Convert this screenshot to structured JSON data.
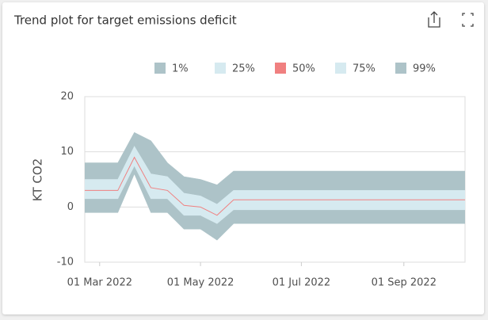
{
  "chart_data": {
    "type": "fan",
    "title": "Trend plot for target emissions deficit",
    "y_label": "KT CO2",
    "x": [
      "2022-02-20",
      "2022-03-12",
      "2022-03-22",
      "2022-04-01",
      "2022-04-11",
      "2022-04-21",
      "2022-05-01",
      "2022-05-11",
      "2022-05-21",
      "2022-10-08"
    ],
    "series": [
      {
        "name": "1%",
        "color": "#adc3c8",
        "values": [
          -1,
          -1,
          6,
          -1,
          -1,
          -4,
          -4,
          -6,
          -3,
          -3
        ]
      },
      {
        "name": "25%",
        "color": "#d6eaf0",
        "values": [
          1.5,
          1.5,
          7.5,
          1.5,
          1.5,
          -1.5,
          -1.5,
          -3,
          -0.5,
          -0.5
        ]
      },
      {
        "name": "50%",
        "color": "#f08080",
        "values": [
          3,
          3,
          9,
          3.5,
          3,
          0.3,
          0,
          -1.5,
          1.3,
          1.3
        ]
      },
      {
        "name": "75%",
        "color": "#d6eaf0",
        "values": [
          5,
          5,
          11,
          6,
          5.5,
          2.5,
          2,
          0.5,
          3,
          3
        ]
      },
      {
        "name": "99%",
        "color": "#adc3c8",
        "values": [
          8,
          8,
          13.5,
          12,
          8,
          5.5,
          5,
          4,
          6.5,
          6.5
        ]
      }
    ],
    "xlim": [
      "2022-02-20",
      "2022-10-08"
    ],
    "xticks": [
      {
        "value": "2022-03-01",
        "label": "01 Mar 2022"
      },
      {
        "value": "2022-05-01",
        "label": "01 May 2022"
      },
      {
        "value": "2022-07-01",
        "label": "01 Jul 2022"
      },
      {
        "value": "2022-09-01",
        "label": "01 Sep 2022"
      }
    ],
    "ylim": [
      -10,
      20
    ],
    "yticks": [
      -10,
      0,
      10,
      20
    ],
    "grid": true,
    "legend": "top"
  }
}
